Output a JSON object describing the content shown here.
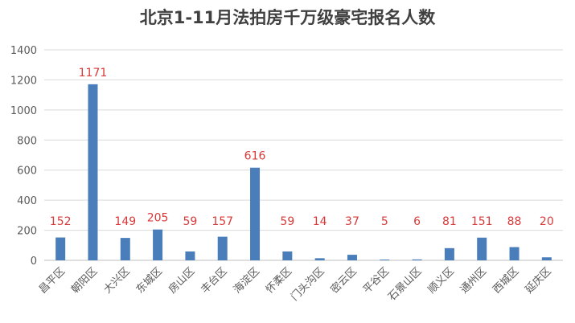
{
  "chart_data": {
    "type": "bar",
    "title": "北京1-11月法拍房千万级豪宅报名人数",
    "categories": [
      "昌平区",
      "朝阳区",
      "大兴区",
      "东城区",
      "房山区",
      "丰台区",
      "海淀区",
      "怀柔区",
      "门头沟区",
      "密云区",
      "平谷区",
      "石景山区",
      "顺义区",
      "通州区",
      "西城区",
      "延庆区"
    ],
    "values": [
      152,
      1171,
      149,
      205,
      59,
      157,
      616,
      59,
      14,
      37,
      5,
      6,
      81,
      151,
      88,
      20
    ],
    "data_labels": [
      "152",
      "1171",
      "149",
      "205",
      "59",
      "157",
      "616",
      "59",
      "14",
      "37",
      "5",
      "6",
      "81",
      "151",
      "88",
      "20"
    ],
    "ylim": [
      0,
      1400
    ],
    "yticks": [
      0,
      200,
      400,
      600,
      800,
      1000,
      1200,
      1400
    ],
    "xlabel": "",
    "ylabel": "",
    "grid": true,
    "legend": "none",
    "colors": {
      "bar": "#4a7ebb",
      "data_label": "#d83a3a",
      "grid": "#d9d9d9",
      "tick_label": "#595959",
      "title": "#404040"
    }
  }
}
